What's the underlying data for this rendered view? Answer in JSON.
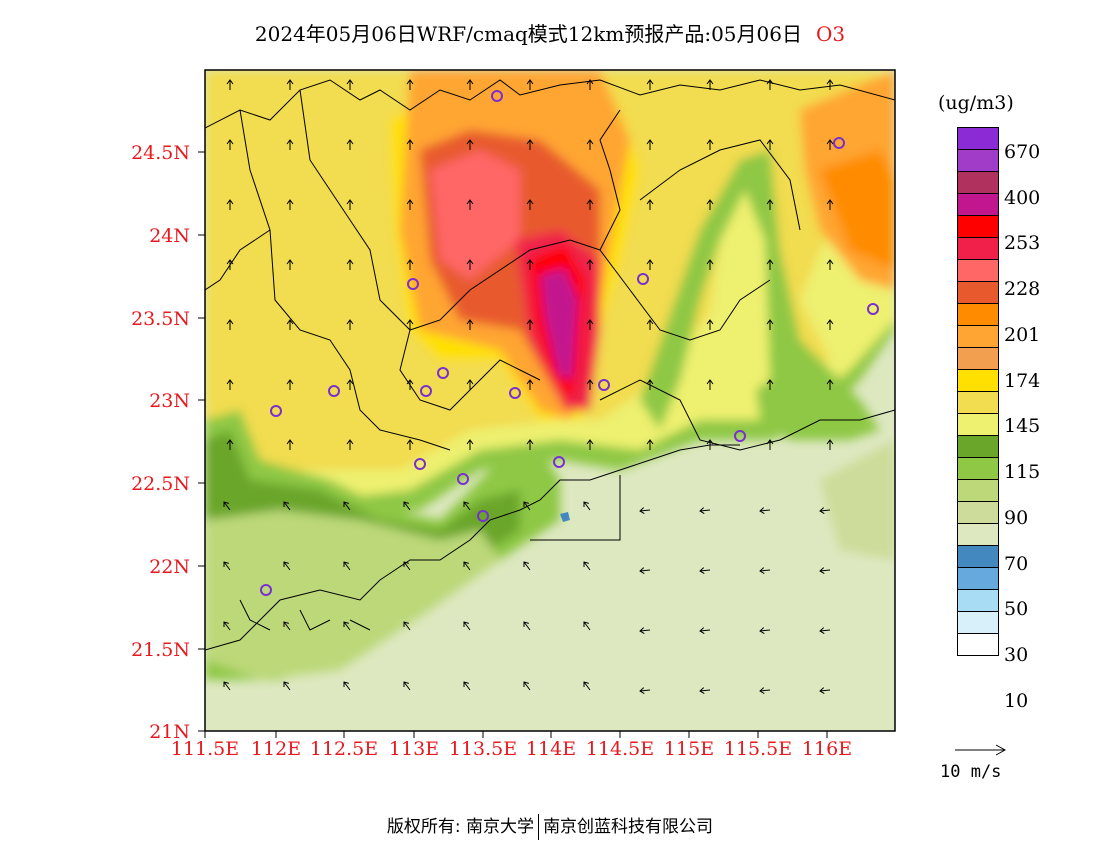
{
  "title": {
    "main": "2024年05月06日WRF/cmaq模式12km预报产品:05月06日",
    "pollutant": "O3"
  },
  "map": {
    "lat_labels": [
      "24.5N",
      "24N",
      "23.5N",
      "23N",
      "22.5N",
      "22N",
      "21.5N",
      "21N"
    ],
    "lon_labels": [
      "111.5E",
      "112E",
      "112.5E",
      "113E",
      "113.5E",
      "114E",
      "114.5E",
      "115E",
      "115.5E",
      "116E"
    ],
    "colors": {
      "background_clean": "#dde8c0",
      "ozone_high": "#c2168f",
      "stations": "#7a2fd0",
      "axis_labels": "#e8191e"
    }
  },
  "colorbar": {
    "unit": "(ug/m3)",
    "labels": [
      "670",
      "400",
      "253",
      "228",
      "201",
      "174",
      "145",
      "115",
      "90",
      "70",
      "50",
      "30",
      "10"
    ],
    "colors": [
      "#8a2bd6",
      "#a03cc8",
      "#b0305e",
      "#c2168f",
      "#ff0000",
      "#f0204a",
      "#ff6666",
      "#e85a2e",
      "#ff8c00",
      "#ffa533",
      "#f2a050",
      "#ffe000",
      "#f2dc50",
      "#eef070",
      "#6aa62a",
      "#8ec844",
      "#bcd878",
      "#cddc9a",
      "#dde8c0",
      "#4488c0",
      "#66aadd",
      "#a8dcf4",
      "#d8f0fa",
      "#ffffff"
    ]
  },
  "wind_reference": {
    "label": "10 m/s"
  },
  "footer": {
    "left": "版权所有: 南京大学",
    "right": "南京创蓝科技有限公司"
  }
}
